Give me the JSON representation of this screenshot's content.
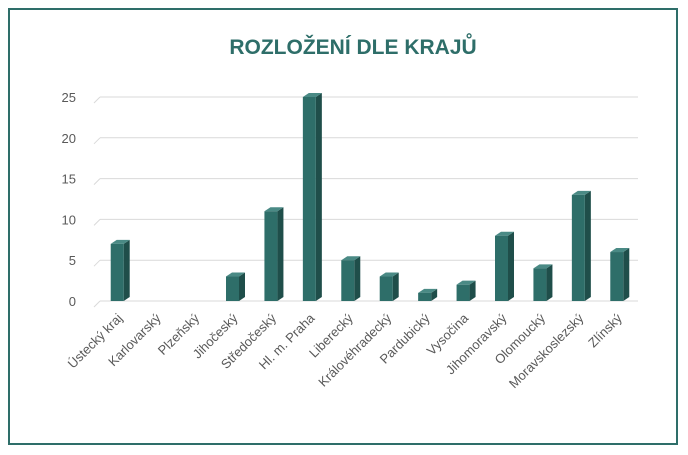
{
  "chart_data": {
    "type": "bar",
    "title": "ROZLOŽENÍ DLE KRAJŮ",
    "xlabel": "",
    "ylabel": "",
    "ylim": [
      0,
      25
    ],
    "yticks": [
      0,
      5,
      10,
      15,
      20,
      25
    ],
    "grid": true,
    "legend": "none",
    "categories": [
      "Ústecký kraj",
      "Karlovarský",
      "Plzeňský",
      "Jihočeský",
      "Středočeský",
      "Hl. m. Praha",
      "Liberecký",
      "Královéhradecký",
      "Pardubický",
      "Vysočina",
      "Jihomoravský",
      "Olomoucký",
      "Moravskoslezský",
      "Zlínský"
    ],
    "values": [
      7,
      0,
      0,
      3,
      11,
      25,
      5,
      3,
      1,
      2,
      8,
      4,
      13,
      6
    ],
    "colors": {
      "bar_front": "#2e6e69",
      "bar_side": "#1f4e4a",
      "bar_top": "#4a8a85",
      "title": "#2e6e69"
    }
  }
}
